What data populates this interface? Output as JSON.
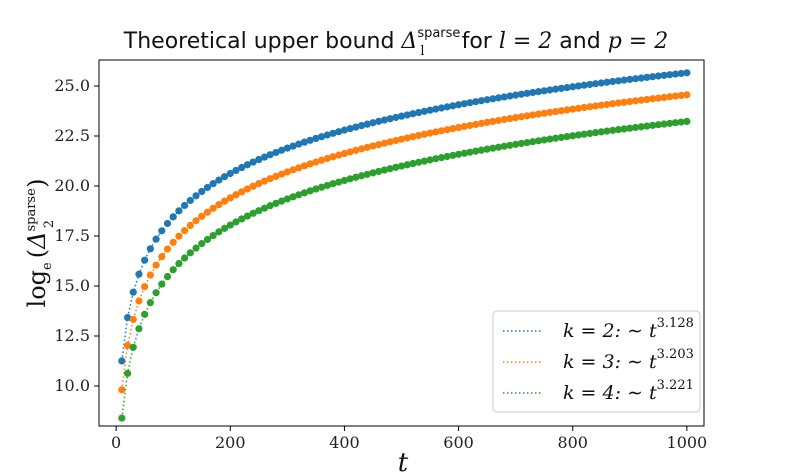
{
  "chart_data": {
    "type": "scatter",
    "title": {
      "text": "Theoretical upper bound ",
      "symbol": "Δ",
      "symbol_sup": "sparse",
      "symbol_sub": "l",
      "for_text": " for ",
      "l_eq": "l = 2",
      "and_text": " and ",
      "p_eq": "p = 2"
    },
    "xlabel": "t",
    "ylabel": {
      "prefix": "log",
      "base": "e",
      "symbol": "Δ",
      "sup": "sparse",
      "sub": "2"
    },
    "xlim": [
      -30,
      1030
    ],
    "ylim": [
      8.0,
      26.3
    ],
    "xticks": [
      0,
      200,
      400,
      600,
      800,
      1000
    ],
    "xtick_labels": [
      "0",
      "200",
      "400",
      "600",
      "800",
      "1000"
    ],
    "yticks": [
      10.0,
      12.5,
      15.0,
      17.5,
      20.0,
      22.5,
      25.0
    ],
    "ytick_labels": [
      "10.0",
      "12.5",
      "15.0",
      "17.5",
      "20.0",
      "22.5",
      "25.0"
    ],
    "grid": false,
    "legend_position": "bottom-right",
    "x_start": 10,
    "x_step": 10,
    "x_end": 1000,
    "series": [
      {
        "name": "k = 2: ~ t^3.128",
        "label_main": "k = 2: ∼ t",
        "label_exp": "3.128",
        "color": "#1f77b4",
        "exponent": 3.128,
        "value_at_x10": 11.46,
        "value_at_x1000": 25.66
      },
      {
        "name": "k = 3: ~ t^3.203",
        "label_main": "k = 3: ∼ t",
        "label_exp": "3.203",
        "color": "#ff7f0e",
        "exponent": 3.203,
        "value_at_x10": 10.05,
        "value_at_x1000": 24.56
      },
      {
        "name": "k = 4: ~ t^3.221",
        "label_main": "k = 4: ∼ t",
        "label_exp": "3.221",
        "color": "#2ca02c",
        "exponent": 3.221,
        "value_at_x10": 8.72,
        "value_at_x1000": 23.23
      }
    ]
  }
}
